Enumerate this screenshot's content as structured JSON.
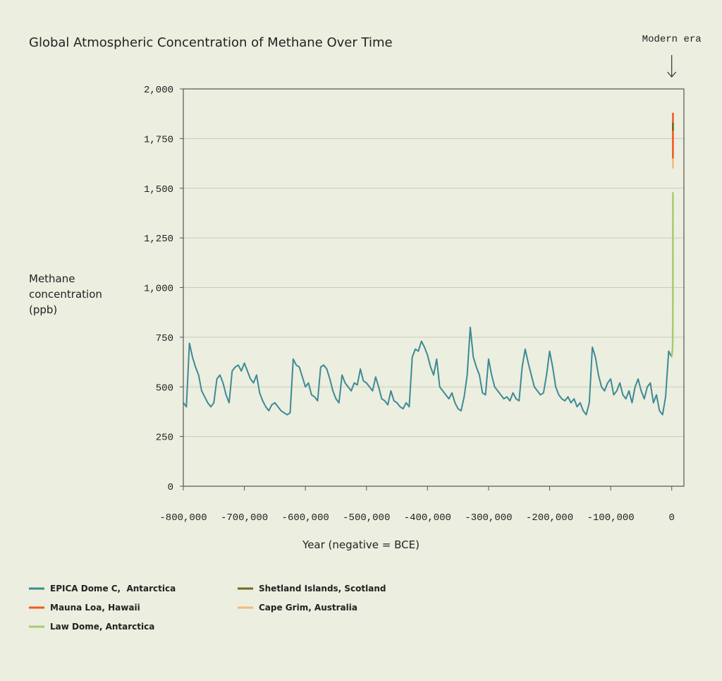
{
  "chart_data": {
    "type": "line",
    "title": "Global Atmospheric Concentration of Methane Over Time",
    "x_label": "Year (negative = BCE)",
    "y_label": "Methane concentration (ppb)",
    "annotation": "Modern era",
    "annotation_x": 0,
    "xlim": [
      -800000,
      20000
    ],
    "ylim": [
      0,
      2000
    ],
    "xticks": [
      {
        "value": -800000,
        "label": "-800,000"
      },
      {
        "value": -700000,
        "label": "-700,000"
      },
      {
        "value": -600000,
        "label": "-600,000"
      },
      {
        "value": -500000,
        "label": "-500,000"
      },
      {
        "value": -400000,
        "label": "-400,000"
      },
      {
        "value": -300000,
        "label": "-300,000"
      },
      {
        "value": -200000,
        "label": "-200,000"
      },
      {
        "value": -100000,
        "label": "-100,000"
      },
      0
    ],
    "yticks": [
      0,
      250,
      500,
      750,
      {
        "value": 1000,
        "label": "1,000"
      },
      {
        "value": 1250,
        "label": "1,250"
      },
      {
        "value": 1500,
        "label": "1,500"
      },
      {
        "value": 1750,
        "label": "1,750"
      },
      {
        "value": 2000,
        "label": "2,000"
      }
    ],
    "grid": true,
    "series": [
      {
        "name": "EPICA Dome C,  Antarctica",
        "color": "#3d8a95",
        "x": [
          -800000,
          -795000,
          -790000,
          -785000,
          -780000,
          -775000,
          -770000,
          -765000,
          -760000,
          -755000,
          -750000,
          -745000,
          -740000,
          -735000,
          -730000,
          -725000,
          -720000,
          -715000,
          -710000,
          -705000,
          -700000,
          -695000,
          -690000,
          -685000,
          -680000,
          -675000,
          -670000,
          -665000,
          -660000,
          -655000,
          -650000,
          -645000,
          -640000,
          -635000,
          -630000,
          -625000,
          -620000,
          -615000,
          -610000,
          -605000,
          -600000,
          -595000,
          -590000,
          -585000,
          -580000,
          -575000,
          -570000,
          -565000,
          -560000,
          -555000,
          -550000,
          -545000,
          -540000,
          -535000,
          -530000,
          -525000,
          -520000,
          -515000,
          -510000,
          -505000,
          -500000,
          -495000,
          -490000,
          -485000,
          -480000,
          -475000,
          -470000,
          -465000,
          -460000,
          -455000,
          -450000,
          -445000,
          -440000,
          -435000,
          -430000,
          -425000,
          -420000,
          -415000,
          -410000,
          -405000,
          -400000,
          -395000,
          -390000,
          -385000,
          -380000,
          -375000,
          -370000,
          -365000,
          -360000,
          -355000,
          -350000,
          -345000,
          -340000,
          -335000,
          -330000,
          -325000,
          -320000,
          -315000,
          -310000,
          -305000,
          -300000,
          -295000,
          -290000,
          -285000,
          -280000,
          -275000,
          -270000,
          -265000,
          -260000,
          -255000,
          -250000,
          -245000,
          -240000,
          -235000,
          -230000,
          -225000,
          -220000,
          -215000,
          -210000,
          -205000,
          -200000,
          -195000,
          -190000,
          -185000,
          -180000,
          -175000,
          -170000,
          -165000,
          -160000,
          -155000,
          -150000,
          -145000,
          -140000,
          -135000,
          -130000,
          -125000,
          -120000,
          -115000,
          -110000,
          -105000,
          -100000,
          -95000,
          -90000,
          -85000,
          -80000,
          -75000,
          -70000,
          -65000,
          -60000,
          -55000,
          -50000,
          -45000,
          -40000,
          -35000,
          -30000,
          -25000,
          -20000,
          -15000,
          -10000,
          -5000,
          0
        ],
        "values": [
          420,
          400,
          720,
          650,
          600,
          560,
          480,
          450,
          420,
          400,
          420,
          540,
          560,
          520,
          460,
          420,
          580,
          600,
          610,
          580,
          620,
          580,
          540,
          520,
          560,
          470,
          430,
          400,
          380,
          410,
          420,
          400,
          380,
          370,
          360,
          370,
          640,
          610,
          600,
          550,
          500,
          520,
          460,
          450,
          430,
          600,
          610,
          590,
          540,
          480,
          440,
          420,
          560,
          520,
          500,
          480,
          520,
          510,
          590,
          530,
          520,
          500,
          480,
          550,
          500,
          440,
          430,
          410,
          480,
          430,
          420,
          400,
          390,
          420,
          400,
          650,
          690,
          680,
          730,
          700,
          660,
          600,
          560,
          640,
          500,
          480,
          460,
          440,
          470,
          420,
          390,
          380,
          450,
          560,
          800,
          650,
          600,
          560,
          470,
          460,
          640,
          560,
          500,
          480,
          460,
          440,
          450,
          430,
          470,
          440,
          430,
          600,
          690,
          620,
          560,
          500,
          480,
          460,
          470,
          560,
          680,
          600,
          500,
          460,
          440,
          430,
          450,
          420,
          440,
          400,
          420,
          380,
          360,
          420,
          700,
          650,
          560,
          500,
          480,
          520,
          540,
          460,
          480,
          520,
          460,
          440,
          480,
          420,
          500,
          540,
          480,
          440,
          500,
          520,
          420,
          460,
          380,
          360,
          450,
          680,
          650
        ]
      },
      {
        "name": "Mauna Loa, Hawaii",
        "color": "#f05a1e",
        "x": [
          1984,
          1990,
          2000,
          2010,
          2020
        ],
        "values": [
          1650,
          1710,
          1770,
          1800,
          1880
        ]
      },
      {
        "name": "Law Dome, Antarctica",
        "color": "#a5cc6b",
        "x": [
          0,
          1000,
          1500,
          1800,
          1900,
          1950,
          1980
        ],
        "values": [
          650,
          680,
          700,
          800,
          950,
          1150,
          1480
        ]
      },
      {
        "name": "Shetland Islands, Scotland",
        "color": "#6b6b1e",
        "x": [
          1993,
          1997,
          2001
        ],
        "values": [
          1790,
          1810,
          1830
        ]
      },
      {
        "name": "Cape Grim, Australia",
        "color": "#f5b87a",
        "x": [
          1985,
          1995,
          2005,
          2015,
          2020
        ],
        "values": [
          1600,
          1690,
          1720,
          1780,
          1840
        ]
      }
    ]
  }
}
